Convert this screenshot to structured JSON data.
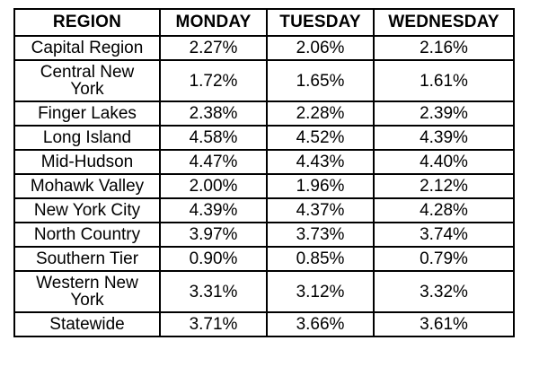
{
  "table": {
    "headers": [
      "REGION",
      "MONDAY",
      "TUESDAY",
      "WEDNESDAY"
    ],
    "rows": [
      {
        "region": "Capital Region",
        "monday": "2.27%",
        "tuesday": "2.06%",
        "wednesday": "2.16%"
      },
      {
        "region": "Central New York",
        "monday": "1.72%",
        "tuesday": "1.65%",
        "wednesday": "1.61%"
      },
      {
        "region": "Finger Lakes",
        "monday": "2.38%",
        "tuesday": "2.28%",
        "wednesday": "2.39%"
      },
      {
        "region": "Long Island",
        "monday": "4.58%",
        "tuesday": "4.52%",
        "wednesday": "4.39%"
      },
      {
        "region": "Mid-Hudson",
        "monday": "4.47%",
        "tuesday": "4.43%",
        "wednesday": "4.40%"
      },
      {
        "region": "Mohawk Valley",
        "monday": "2.00%",
        "tuesday": "1.96%",
        "wednesday": "2.12%"
      },
      {
        "region": "New York City",
        "monday": "4.39%",
        "tuesday": "4.37%",
        "wednesday": "4.28%"
      },
      {
        "region": "North Country",
        "monday": "3.97%",
        "tuesday": "3.73%",
        "wednesday": "3.74%"
      },
      {
        "region": "Southern Tier",
        "monday": "0.90%",
        "tuesday": "0.85%",
        "wednesday": "0.79%"
      },
      {
        "region": "Western New York",
        "monday": "3.31%",
        "tuesday": "3.12%",
        "wednesday": "3.32%"
      },
      {
        "region": "Statewide",
        "monday": "3.71%",
        "tuesday": "3.66%",
        "wednesday": "3.61%"
      }
    ]
  }
}
